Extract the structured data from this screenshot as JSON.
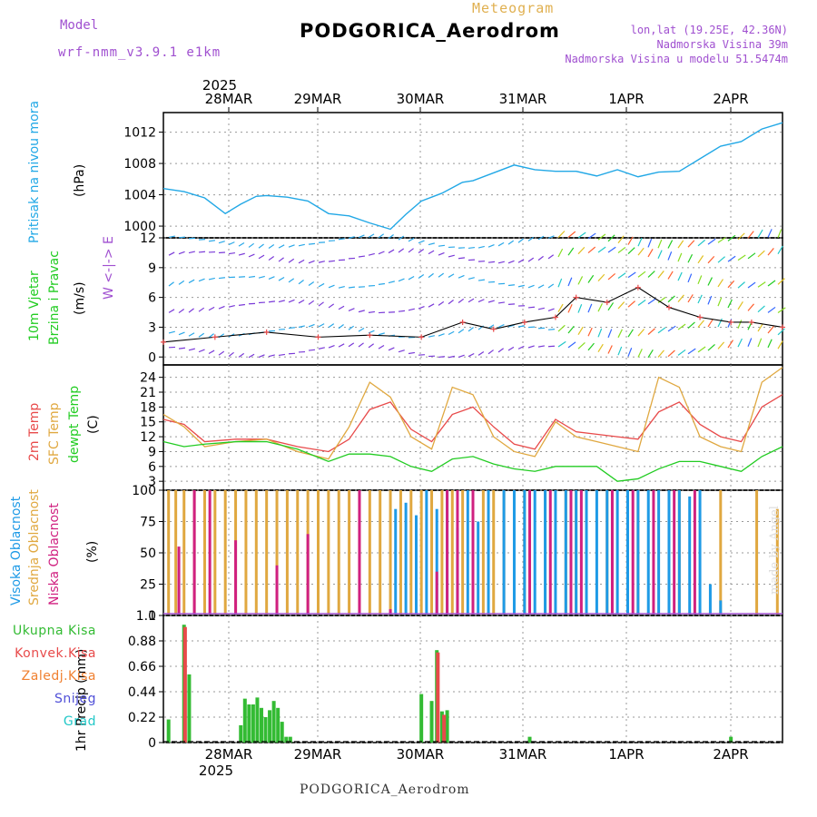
{
  "header": {
    "title": "PODGORICA_Aerodrom",
    "subtitle": "Meteogram",
    "model_label": "Model",
    "model_name": "wrf-nmm_v3.9.1 e1km",
    "coords": "lon,lat (19.25E, 42.36N)",
    "elevation": "Nadmorska Visina 39m",
    "model_elevation": "Nadmorska Visina u modelu 51.5474m"
  },
  "footer": {
    "station": "PODGORICA_Aerodrom",
    "credit": "made by Angel"
  },
  "colors": {
    "pressure": "#22a8e6",
    "temp2m": "#e84a4a",
    "sfc_temp": "#e0a840",
    "dewpoint": "#22cc22",
    "high_cloud": "#1e9ae6",
    "mid_cloud": "#e0a840",
    "low_cloud": "#d02080",
    "total_precip": "#33bb33",
    "conv_precip": "#e84a4a",
    "freezing": "#f08030",
    "snow": "#5050d8",
    "hail": "#22c8c8"
  },
  "time_axis": {
    "year": "2025",
    "days": [
      "28MAR",
      "29MAR",
      "30MAR",
      "31MAR",
      "1APR",
      "2APR"
    ]
  },
  "chart_data": [
    {
      "type": "line",
      "id": "pressure",
      "ylabel": [
        "Pritisak na nivou mora",
        "(hPa)"
      ],
      "ylim": [
        998.5,
        1014.5
      ],
      "yticks": [
        1000,
        1004,
        1008,
        1012
      ],
      "grid": true,
      "series": [
        {
          "x": [
            0,
            0.2,
            0.4,
            0.6,
            0.75,
            0.9,
            1.0,
            1.2,
            1.4,
            1.6,
            1.8,
            2.0,
            2.2,
            2.35,
            2.5,
            2.7,
            2.9,
            3.0,
            3.2,
            3.4,
            3.6,
            3.8,
            4.0,
            4.2,
            4.4,
            4.6,
            4.8,
            5.0,
            5.2,
            5.4,
            5.6,
            5.8,
            6.0
          ],
          "values": [
            1004.8,
            1004.4,
            1003.6,
            1001.6,
            1002.8,
            1003.8,
            1003.9,
            1003.7,
            1003.2,
            1001.6,
            1001.3,
            1000.4,
            999.6,
            1001.5,
            1003.2,
            1004.2,
            1005.6,
            1005.8,
            1006.8,
            1007.8,
            1007.2,
            1007.0,
            1007.0,
            1006.4,
            1007.2,
            1006.3,
            1006.9,
            1007.0,
            1008.6,
            1010.2,
            1010.8,
            1012.4,
            1013.2
          ]
        }
      ]
    },
    {
      "type": "line",
      "id": "wind",
      "ylabel": [
        "10m Vjetar",
        "Brzina i Pravac",
        "(m/s)"
      ],
      "compass": "W <-|-> E",
      "ylim": [
        -0.8,
        12
      ],
      "yticks": [
        0,
        3,
        6,
        9,
        12
      ],
      "grid": true,
      "series": [
        {
          "x": [
            0,
            0.5,
            1.0,
            1.5,
            2.0,
            2.5,
            2.9,
            3.2,
            3.5,
            3.8,
            4.0,
            4.3,
            4.6,
            4.9,
            5.2,
            5.5,
            5.7,
            6.0
          ],
          "values": [
            1.5,
            2.0,
            2.5,
            2.0,
            2.2,
            2.0,
            3.5,
            2.8,
            3.5,
            4.0,
            6.0,
            5.5,
            7.0,
            5.0,
            4.0,
            3.5,
            3.5,
            3.0
          ]
        }
      ]
    },
    {
      "type": "line",
      "id": "temperature",
      "ylabel": [
        "2m Temp",
        "SFC Temp",
        "dewpt Temp",
        "(C)"
      ],
      "ylim": [
        1.2,
        26.5
      ],
      "yticks": [
        3,
        6,
        9,
        12,
        15,
        18,
        21,
        24
      ],
      "grid": true,
      "series": [
        {
          "name": "2m Temp",
          "color": "#e84a4a",
          "x": [
            0,
            0.2,
            0.4,
            0.7,
            1.0,
            1.3,
            1.6,
            1.8,
            2.0,
            2.2,
            2.4,
            2.6,
            2.8,
            3.0,
            3.2,
            3.4,
            3.6,
            3.8,
            4.0,
            4.2,
            4.4,
            4.6,
            4.8,
            5.0,
            5.2,
            5.4,
            5.6,
            5.8,
            6.0
          ],
          "values": [
            15.5,
            14.5,
            11.0,
            11.5,
            11.5,
            10.0,
            9.0,
            11.5,
            17.5,
            19.0,
            13.5,
            11.0,
            16.5,
            18.0,
            14.0,
            10.5,
            9.5,
            15.5,
            13.0,
            12.5,
            12.0,
            11.5,
            17.0,
            19.0,
            14.5,
            12.0,
            11.0,
            18.0,
            20.5
          ]
        },
        {
          "name": "SFC Temp",
          "color": "#e0a840",
          "x": [
            0,
            0.2,
            0.4,
            0.7,
            1.0,
            1.3,
            1.6,
            1.8,
            2.0,
            2.2,
            2.4,
            2.6,
            2.8,
            3.0,
            3.2,
            3.4,
            3.6,
            3.8,
            4.0,
            4.2,
            4.4,
            4.6,
            4.8,
            5.0,
            5.2,
            5.4,
            5.6,
            5.8,
            6.0
          ],
          "values": [
            16.5,
            14.0,
            10.0,
            11.0,
            11.5,
            9.0,
            7.5,
            14.0,
            23.0,
            20.0,
            12.0,
            9.5,
            22.0,
            20.5,
            12.0,
            9.0,
            8.0,
            15.0,
            12.0,
            11.0,
            10.0,
            9.0,
            24.0,
            22.0,
            12.0,
            10.0,
            9.0,
            23.0,
            26.0
          ]
        },
        {
          "name": "dewpt Temp",
          "color": "#22cc22",
          "x": [
            0,
            0.2,
            0.4,
            0.7,
            1.0,
            1.3,
            1.6,
            1.8,
            2.0,
            2.2,
            2.4,
            2.6,
            2.8,
            3.0,
            3.2,
            3.4,
            3.6,
            3.8,
            4.0,
            4.2,
            4.4,
            4.6,
            4.8,
            5.0,
            5.2,
            5.4,
            5.6,
            5.8,
            6.0
          ],
          "values": [
            11.0,
            10.0,
            10.5,
            11.0,
            11.0,
            9.5,
            7.0,
            8.5,
            8.5,
            8.0,
            6.0,
            5.0,
            7.5,
            8.0,
            6.5,
            5.5,
            5.0,
            6.0,
            6.0,
            6.0,
            3.0,
            3.5,
            5.5,
            7.0,
            7.0,
            6.0,
            5.0,
            8.0,
            10.0
          ]
        }
      ]
    },
    {
      "type": "bar",
      "id": "cloud",
      "ylabel": [
        "Visoka Oblacnost",
        "Srednja Oblacnost",
        "Niska Oblacnost",
        "(%)"
      ],
      "ylim": [
        0,
        100
      ],
      "yticks": [
        0,
        25,
        50,
        75,
        100
      ],
      "grid": true,
      "series": [
        {
          "name": "Srednja Oblacnost",
          "color": "#e0a840",
          "x": [
            0.05,
            0.12,
            0.2,
            0.3,
            0.4,
            0.5,
            0.6,
            0.7,
            0.8,
            0.9,
            1.0,
            1.1,
            1.2,
            1.3,
            1.4,
            1.5,
            1.6,
            1.7,
            1.8,
            1.9,
            2.0,
            2.1,
            2.2,
            2.3,
            2.4,
            2.5,
            2.6,
            2.7,
            2.8,
            2.9,
            3.0,
            3.1,
            3.2,
            3.3,
            3.5,
            3.7,
            3.9,
            4.0,
            4.3,
            4.6,
            5.0,
            5.4,
            5.75,
            5.95
          ],
          "values": [
            100,
            100,
            100,
            100,
            100,
            100,
            100,
            100,
            100,
            100,
            100,
            100,
            100,
            100,
            100,
            100,
            100,
            100,
            100,
            100,
            100,
            100,
            100,
            100,
            100,
            100,
            100,
            100,
            100,
            100,
            100,
            100,
            100,
            100,
            100,
            100,
            100,
            100,
            100,
            100,
            100,
            100,
            100,
            85
          ]
        },
        {
          "name": "Visoka Oblacnost",
          "color": "#1e9ae6",
          "x": [
            2.25,
            2.35,
            2.45,
            2.55,
            2.65,
            2.75,
            2.85,
            2.95,
            3.05,
            3.15,
            3.3,
            3.4,
            3.5,
            3.6,
            3.7,
            3.8,
            3.9,
            4.0,
            4.1,
            4.2,
            4.3,
            4.4,
            4.5,
            4.6,
            4.7,
            4.8,
            4.9,
            5.0,
            5.1,
            5.2,
            5.3,
            5.4
          ],
          "values": [
            85,
            90,
            80,
            100,
            85,
            100,
            70,
            100,
            75,
            100,
            100,
            100,
            100,
            100,
            100,
            100,
            100,
            100,
            100,
            100,
            100,
            100,
            100,
            100,
            100,
            100,
            100,
            100,
            95,
            100,
            25,
            12
          ]
        },
        {
          "name": "Niska Oblacnost",
          "color": "#d02080",
          "x": [
            0.15,
            0.3,
            0.45,
            0.7,
            1.1,
            1.4,
            1.9,
            2.2,
            2.65,
            2.75,
            2.85,
            3.0,
            3.55,
            3.75,
            3.95,
            4.05,
            4.35,
            4.55,
            4.75,
            4.95,
            5.15
          ],
          "values": [
            55,
            100,
            100,
            60,
            40,
            65,
            100,
            5,
            35,
            100,
            100,
            100,
            100,
            100,
            100,
            100,
            100,
            100,
            100,
            100,
            100
          ]
        }
      ]
    },
    {
      "type": "bar",
      "id": "precip",
      "ylabel": [
        "1hr Precip (mm)"
      ],
      "legend": [
        "Ukupna Kisa",
        "Konvek.Kisa",
        "Zaledj.Kisa",
        "Snijeg",
        "Grad"
      ],
      "ylim": [
        0,
        1.1
      ],
      "yticks": [
        0,
        0.22,
        0.44,
        0.66,
        0.88,
        1.1
      ],
      "ytick_labels": [
        "0",
        "0.22",
        "0.44",
        "0.66",
        "0.88",
        "1.1"
      ],
      "grid": true,
      "series": [
        {
          "name": "Ukupna Kisa",
          "color": "#33bb33",
          "x": [
            0.05,
            0.2,
            0.25,
            0.75,
            0.79,
            0.83,
            0.87,
            0.91,
            0.95,
            0.99,
            1.03,
            1.07,
            1.11,
            1.15,
            1.19,
            1.23,
            2.5,
            2.6,
            2.65,
            2.7,
            2.75,
            3.55,
            5.5
          ],
          "values": [
            0.2,
            1.02,
            0.59,
            0.15,
            0.38,
            0.33,
            0.33,
            0.39,
            0.3,
            0.22,
            0.28,
            0.36,
            0.3,
            0.18,
            0.05,
            0.05,
            0.42,
            0.36,
            0.8,
            0.27,
            0.28,
            0.05,
            0.05
          ]
        },
        {
          "name": "Konvek.Kisa",
          "color": "#e84a4a",
          "x": [
            0.21,
            2.66,
            2.72
          ],
          "values": [
            1.0,
            0.78,
            0.24
          ]
        }
      ]
    }
  ]
}
